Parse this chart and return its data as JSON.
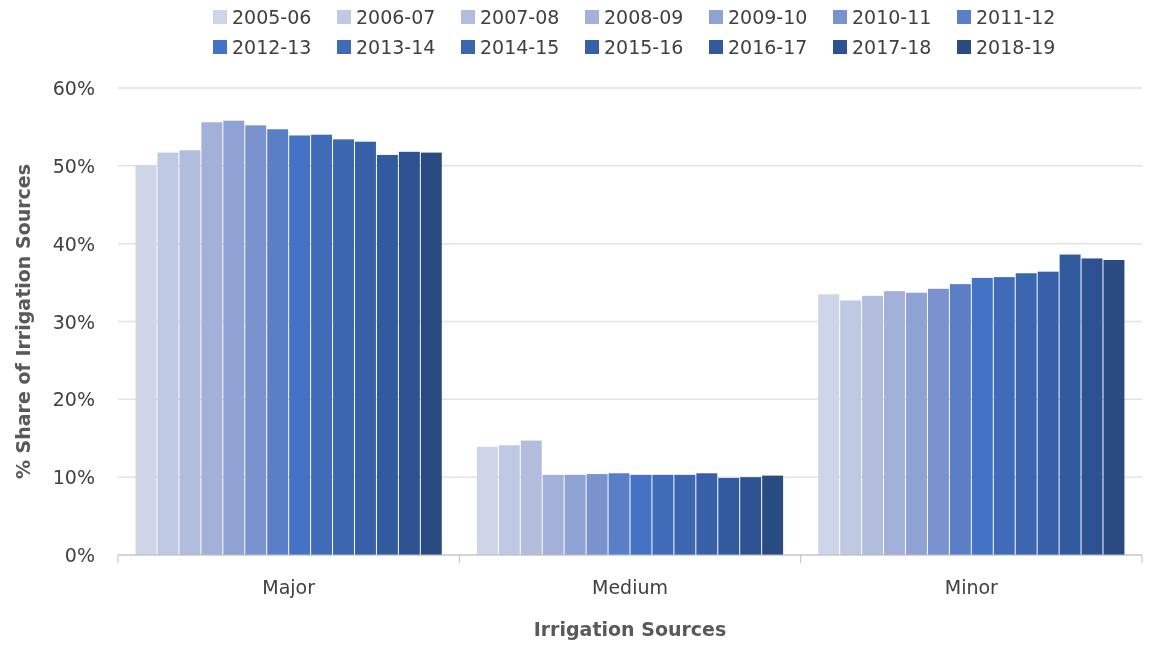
{
  "chart_data": {
    "type": "bar",
    "xlabel": "Irrigation Sources",
    "ylabel": "% Share of Irrigation Sources",
    "categories": [
      "Major",
      "Medium",
      "Minor"
    ],
    "ylim": [
      0,
      60
    ],
    "yticks": [
      {
        "value": 0,
        "label": "0%"
      },
      {
        "value": 10,
        "label": "10%"
      },
      {
        "value": 20,
        "label": "20%"
      },
      {
        "value": 30,
        "label": "30%"
      },
      {
        "value": 40,
        "label": "40%"
      },
      {
        "value": 50,
        "label": "50%"
      },
      {
        "value": 60,
        "label": "60%"
      }
    ],
    "grid": "y",
    "legend": "top",
    "series": [
      {
        "name": "2005-06",
        "color": "#cfd5e8",
        "values": [
          50.1,
          13.9,
          33.5
        ]
      },
      {
        "name": "2006-07",
        "color": "#c0c9e4",
        "values": [
          51.7,
          14.1,
          32.7
        ]
      },
      {
        "name": "2007-08",
        "color": "#b2bcdd",
        "values": [
          52.0,
          14.7,
          33.3
        ]
      },
      {
        "name": "2008-09",
        "color": "#a3b0da",
        "values": [
          55.6,
          10.3,
          33.9
        ]
      },
      {
        "name": "2009-10",
        "color": "#8fa2d4",
        "values": [
          55.8,
          10.3,
          33.7
        ]
      },
      {
        "name": "2010-11",
        "color": "#7a93cf",
        "values": [
          55.2,
          10.4,
          34.2
        ]
      },
      {
        "name": "2011-12",
        "color": "#5b7fc7",
        "values": [
          54.7,
          10.5,
          34.8
        ]
      },
      {
        "name": "2012-13",
        "color": "#4472c4",
        "values": [
          53.9,
          10.3,
          35.6
        ]
      },
      {
        "name": "2013-14",
        "color": "#3f6bb8",
        "values": [
          54.0,
          10.3,
          35.7
        ]
      },
      {
        "name": "2014-15",
        "color": "#3b66b0",
        "values": [
          53.4,
          10.3,
          36.2
        ]
      },
      {
        "name": "2015-16",
        "color": "#3760a8",
        "values": [
          53.1,
          10.5,
          36.4
        ]
      },
      {
        "name": "2016-17",
        "color": "#325a9e",
        "values": [
          51.4,
          9.9,
          38.6
        ]
      },
      {
        "name": "2017-18",
        "color": "#2e5291",
        "values": [
          51.8,
          10.0,
          38.1
        ]
      },
      {
        "name": "2018-19",
        "color": "#2a4b82",
        "values": [
          51.7,
          10.2,
          37.9
        ]
      }
    ]
  }
}
